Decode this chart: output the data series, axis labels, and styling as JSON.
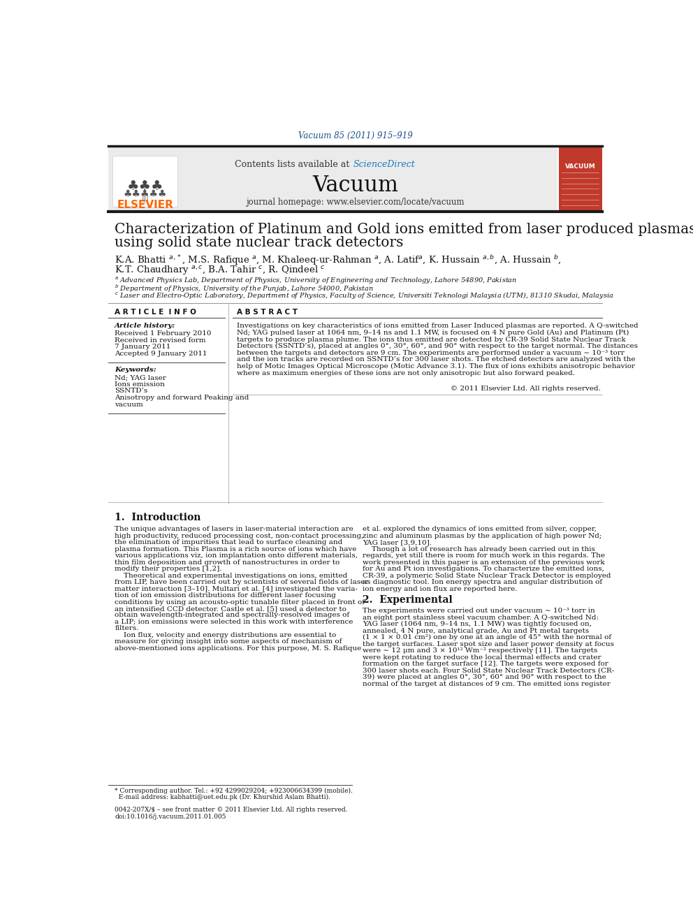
{
  "page_bg": "#ffffff",
  "journal_ref": "Vacuum 85 (2011) 915–919",
  "journal_ref_color": "#1a4f8a",
  "header_bg": "#e8e8e8",
  "header_text": "Contents lists available at ",
  "sciencedirect_text": "ScienceDirect",
  "sciencedirect_color": "#1a7abf",
  "journal_name": "Vacuum",
  "journal_homepage": "journal homepage: www.elsevier.com/locate/vacuum",
  "elsevier_color": "#ff6600",
  "elsevier_text": "ELSEVIER",
  "title_line1": "Characterization of Platinum and Gold ions emitted from laser produced plasmas",
  "title_line2": "using solid state nuclear track detectors",
  "authors_line1": "K.A. Bhatti $^{a,*}$, M.S. Rafique $^{a}$, M. Khaleeq-ur-Rahman $^{a}$, A. Latif$^{a}$, K. Hussain $^{a,b}$, A. Hussain $^{b}$,",
  "authors_line2": "K.T. Chaudhary $^{a,c}$, B.A. Tahir $^{c}$, R. Qindeel $^{c}$",
  "affil_a": "$^{a}$ Advanced Physics Lab, Department of Physics, University of Engineering and Technology, Lahore 54890, Pakistan",
  "affil_b": "$^{b}$ Department of Physics, University of the Punjab, Lahore 54000, Pakistan",
  "affil_c": "$^{c}$ Laser and Electro-Optic Laboratory, Department of Physics, Faculty of Science, Universiti Teknologi Malaysia (UTM), 81310 Skudai, Malaysia",
  "article_info_title": "A R T I C L E  I N F O",
  "article_history_title": "Article history:",
  "article_history_lines": [
    "Received 1 February 2010",
    "Received in revised form",
    "7 January 2011",
    "Accepted 9 January 2011"
  ],
  "keywords_title": "Keywords:",
  "keywords_lines": [
    "Nd; YAG laser",
    "Ions emission",
    "SSNTD’s",
    "Anisotropy and forward Peaking and",
    "vacuum"
  ],
  "abstract_title": "A B S T R A C T",
  "abstract_lines": [
    "Investigations on key characteristics of ions emitted from Laser Induced plasmas are reported. A Q-switched",
    "Nd; YAG pulsed laser at 1064 nm, 9–14 ns and 1.1 MW, is focused on 4 N pure Gold (Au) and Platinum (Pt)",
    "targets to produce plasma plume. The ions thus emitted are detected by CR-39 Solid State Nuclear Track",
    "Detectors (SSNTD’s), placed at angles 0°, 30°, 60°, and 90° with respect to the target normal. The distances",
    "between the targets and detectors are 9 cm. The experiments are performed under a vacuum ∼ 10⁻³ torr",
    "and the ion tracks are recorded on SSNTD’s for 300 laser shots. The etched detectors are analyzed with the",
    "help of Motic Images Optical Microscope (Motic Advance 3.1). The flux of ions exhibits anisotropic behavior",
    "where as maximum energies of these ions are not only anisotropic but also forward peaked."
  ],
  "copyright": "© 2011 Elsevier Ltd. All rights reserved.",
  "section1_title": "1.  Introduction",
  "section1_col1_lines": [
    "The unique advantages of lasers in laser-material interaction are",
    "high productivity, reduced processing cost, non-contact processing,",
    "the elimination of impurities that lead to surface cleaning and",
    "plasma formation. This Plasma is a rich source of ions which have",
    "various applications viz, ion implantation onto different materials,",
    "thin film deposition and growth of nanostructures in order to",
    "modify their properties [1,2].",
    "    Theoretical and experimental investigations on ions, emitted",
    "from LIP, have been carried out by scientists of several fields of laser",
    "matter interaction [3–10]. Multari et al. [4] investigated the varia-",
    "tion of ion emission distributions for different laser focusing",
    "conditions by using an acousto-optic tunable filter placed in front of",
    "an intensified CCD detector. Castle et al. [5] used a detector to",
    "obtain wavelength-integrated and spectrally-resolved images of",
    "a LIP; ion emissions were selected in this work with interference",
    "filters.",
    "    Ion flux, velocity and energy distributions are essential to",
    "measure for giving insight into some aspects of mechanism of",
    "above-mentioned ions applications. For this purpose, M. S. Rafique"
  ],
  "section1_col2_lines": [
    "et al. explored the dynamics of ions emitted from silver, copper,",
    "zinc and aluminum plasmas by the application of high power Nd;",
    "YAG laser [3,9,10].",
    "    Though a lot of research has already been carried out in this",
    "regards, yet still there is room for much work in this regards. The",
    "work presented in this paper is an extension of the previous work",
    "for Au and Pt ion investigations. To characterize the emitted ions,",
    "CR-39, a polymeric Solid State Nuclear Track Detector is employed",
    "as diagnostic tool. Ion energy spectra and angular distribution of",
    "ion energy and ion flux are reported here."
  ],
  "section2_title": "2.  Experimental",
  "section2_col2_lines": [
    "The experiments were carried out under vacuum ∼ 10⁻³ torr in",
    "an eight port stainless steel vacuum chamber. A Q-switched Nd:",
    "YAG laser (1064 nm, 9–14 ns, 1.1 MW) was tightly focused on,",
    "annealed, 4 N pure, analytical grade, Au and Pt metal targets",
    "(1 × 1 × 0.01 cm²) one by one at an angle of 45° with the normal of",
    "the target surfaces. Laser spot size and laser power density at focus",
    "were ∼ 12 μm and 3 × 10¹² Wm⁻² respectively [11]. The targets",
    "were kept rotating to reduce the local thermal effects and crater",
    "formation on the target surface [12]. The targets were exposed for",
    "300 laser shots each. Four Solid State Nuclear Track Detectors (CR-",
    "39) were placed at angles 0°, 30°, 60° and 90° with respect to the",
    "normal of the target at distances of 9 cm. The emitted ions register"
  ],
  "footer_line1": "* Corresponding author. Tel.: +92 4299029204; +923006634399 (mobile).",
  "footer_line2": "  E-mail address: kabhatti@uet.edu.pk (Dr. Khurshid Aslam Bhatti).",
  "footer_issn1": "0042-207X/$ – see front matter © 2011 Elsevier Ltd. All rights reserved.",
  "footer_issn2": "doi:10.1016/j.vacuum.2011.01.005",
  "vacuum_cover_color": "#c0392b",
  "top_bar_color": "#1a1a1a"
}
